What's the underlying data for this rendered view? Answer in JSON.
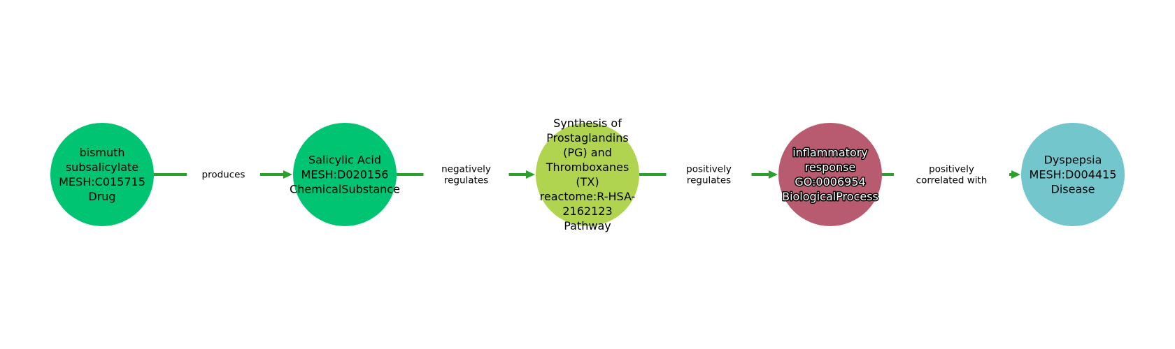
{
  "graph": {
    "nodes": [
      {
        "id": "n1",
        "lines": [
          "bismuth",
          "subsalicylate",
          "MESH:C015715",
          "Drug"
        ],
        "color": "#00c472",
        "text_style": "dark"
      },
      {
        "id": "n2",
        "lines": [
          "Salicylic Acid",
          "MESH:D020156",
          "ChemicalSubstance"
        ],
        "color": "#00c472",
        "text_style": "dark"
      },
      {
        "id": "n3",
        "lines": [
          "Synthesis of",
          "Prostaglandins",
          "(PG) and",
          "Thromboxanes",
          "(TX)",
          "reactome:R-HSA-",
          "2162123",
          "Pathway"
        ],
        "color": "#b0d450",
        "text_style": "dark"
      },
      {
        "id": "n4",
        "lines": [
          "inflammatory",
          "response",
          "GO:0006954",
          "BiologicalProcess"
        ],
        "color": "#b85a70",
        "text_style": "light"
      },
      {
        "id": "n5",
        "lines": [
          "Dyspepsia",
          "MESH:D004415",
          "Disease"
        ],
        "color": "#72c6cc",
        "text_style": "dark"
      }
    ],
    "edges": [
      {
        "from": "n1",
        "to": "n2",
        "label_lines": [
          "produces"
        ]
      },
      {
        "from": "n2",
        "to": "n3",
        "label_lines": [
          "negatively",
          "regulates"
        ]
      },
      {
        "from": "n3",
        "to": "n4",
        "label_lines": [
          "positively",
          "regulates"
        ]
      },
      {
        "from": "n4",
        "to": "n5",
        "label_lines": [
          "positively",
          "correlated with"
        ]
      }
    ],
    "edge_color": "#2ca02c"
  }
}
